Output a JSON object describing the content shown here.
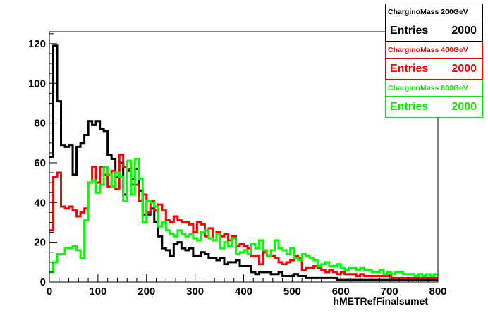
{
  "chart_data": {
    "type": "histogram",
    "xlabel": "hMETRefFinalsumet",
    "xlim": [
      0,
      800
    ],
    "ylim": [
      0,
      126
    ],
    "x_ticks": [
      0,
      100,
      200,
      300,
      400,
      500,
      600,
      700,
      800
    ],
    "y_ticks": [
      0,
      20,
      40,
      60,
      80,
      100,
      120
    ],
    "bin_width": 8,
    "series": [
      {
        "name": "CharginoMass 200GeV",
        "color": "#000000",
        "entries_label": "Entries",
        "entries": "2000",
        "values": [
          63,
          119,
          91,
          69,
          68,
          69,
          54,
          68,
          70,
          74,
          81,
          79,
          81,
          77,
          76,
          64,
          62,
          53,
          60,
          44,
          56,
          52,
          57,
          46,
          34,
          34,
          37,
          30,
          23,
          17,
          16,
          13,
          19,
          20,
          17,
          16,
          17,
          13,
          13,
          15,
          14,
          12,
          12,
          11,
          12,
          9,
          10,
          10,
          11,
          8,
          8,
          8,
          5,
          4,
          5,
          5,
          5,
          4,
          4,
          5,
          3,
          3,
          3,
          4,
          3,
          3,
          2,
          2,
          2,
          2,
          2,
          2,
          2,
          2,
          1,
          1,
          1,
          1,
          1,
          1,
          1,
          1,
          1,
          1,
          1,
          1,
          1,
          1,
          1,
          1,
          1,
          1,
          1,
          1,
          1,
          1,
          1,
          1,
          1,
          1
        ]
      },
      {
        "name": "CharginoMass 400GeV",
        "color": "#ff0000",
        "entries_label": "Entries",
        "entries": "2000",
        "values": [
          26,
          53,
          55,
          38,
          37,
          38,
          36,
          33,
          35,
          37,
          50,
          58,
          50,
          58,
          54,
          48,
          56,
          47,
          64,
          58,
          57,
          49,
          49,
          41,
          44,
          35,
          41,
          36,
          39,
          36,
          31,
          30,
          33,
          31,
          30,
          30,
          29,
          25,
          30,
          29,
          23,
          27,
          21,
          25,
          23,
          24,
          21,
          23,
          18,
          19,
          18,
          17,
          13,
          13,
          9,
          15,
          13,
          13,
          12,
          10,
          9,
          10,
          11,
          13,
          12,
          6,
          7,
          7,
          8,
          7,
          6,
          5,
          6,
          5,
          4,
          5,
          4,
          4,
          4,
          3,
          4,
          3,
          3,
          3,
          3,
          3,
          3,
          3,
          2,
          2,
          2,
          2,
          2,
          2,
          2,
          2,
          2,
          2,
          2,
          2
        ]
      },
      {
        "name": "CharginoMass 800GeV",
        "color": "#00ff00",
        "entries_label": "Entries",
        "entries": "2000",
        "values": [
          5,
          10,
          14,
          14,
          17,
          17,
          18,
          16,
          12,
          31,
          50,
          51,
          45,
          49,
          58,
          54,
          48,
          55,
          53,
          41,
          61,
          44,
          62,
          52,
          30,
          41,
          40,
          38,
          28,
          30,
          26,
          24,
          23,
          26,
          24,
          23,
          24,
          22,
          21,
          25,
          26,
          22,
          21,
          24,
          17,
          20,
          18,
          22,
          14,
          15,
          16,
          14,
          19,
          17,
          21,
          16,
          13,
          16,
          21,
          17,
          16,
          14,
          17,
          12,
          11,
          14,
          13,
          12,
          11,
          8,
          9,
          10,
          8,
          8,
          9,
          7,
          6,
          7,
          7,
          6,
          7,
          6,
          6,
          5,
          5,
          6,
          4,
          5,
          4,
          5,
          5,
          4,
          4,
          4,
          3,
          4,
          3,
          4,
          3,
          4
        ]
      }
    ]
  }
}
